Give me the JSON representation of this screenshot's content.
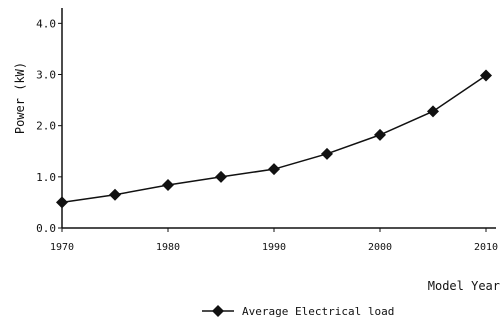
{
  "chart_data": {
    "type": "line",
    "xlabel": "Model Year",
    "ylabel": "Power (kW)",
    "x": [
      1970,
      1975,
      1980,
      1985,
      1990,
      1995,
      2000,
      2005,
      2010
    ],
    "series": [
      {
        "name": "Average Electrical load",
        "values": [
          0.5,
          0.65,
          0.84,
          1.0,
          1.15,
          1.45,
          1.82,
          2.28,
          2.98
        ],
        "marker": "diamond",
        "color": "#111111"
      }
    ],
    "xticks": [
      "1970",
      "1980",
      "1990",
      "2000",
      "2010"
    ],
    "yticks": [
      "0.0",
      "1.0",
      "2.0",
      "3.0",
      "4.0"
    ],
    "xlim": [
      1970,
      2010
    ],
    "ylim": [
      0,
      4.3
    ],
    "grid": false,
    "legend_position": "bottom-center"
  }
}
